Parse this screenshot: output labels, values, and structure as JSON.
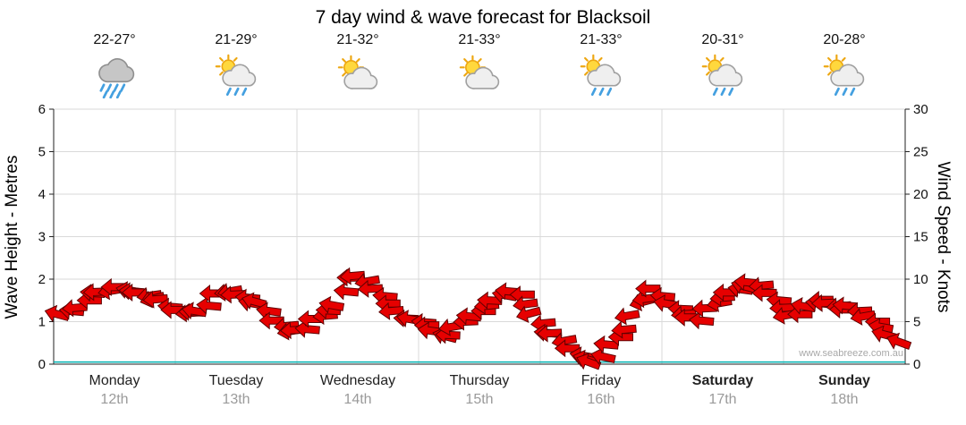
{
  "title": "7 day wind & wave forecast for Blacksoil",
  "watermark": "www.seabreeze.com.au",
  "left_axis": {
    "label": "Wave Height - Metres",
    "ticks": [
      0,
      1,
      2,
      3,
      4,
      5,
      6
    ]
  },
  "right_axis": {
    "label": "Wind Speed - Knots",
    "ticks": [
      0,
      5,
      10,
      15,
      20,
      25,
      30
    ]
  },
  "days": [
    {
      "name": "Monday",
      "date": "12th",
      "temp": "22-27°",
      "icon": "rain",
      "bold": false
    },
    {
      "name": "Tuesday",
      "date": "13th",
      "temp": "21-29°",
      "icon": "sun-shower",
      "bold": false
    },
    {
      "name": "Wednesday",
      "date": "14th",
      "temp": "21-32°",
      "icon": "partly-cloudy",
      "bold": false
    },
    {
      "name": "Thursday",
      "date": "15th",
      "temp": "21-33°",
      "icon": "partly-cloudy",
      "bold": false
    },
    {
      "name": "Friday",
      "date": "16th",
      "temp": "21-33°",
      "icon": "sun-shower",
      "bold": false
    },
    {
      "name": "Saturday",
      "date": "17th",
      "temp": "20-31°",
      "icon": "sun-shower",
      "bold": true
    },
    {
      "name": "Sunday",
      "date": "18th",
      "temp": "20-28°",
      "icon": "sun-shower",
      "bold": true
    }
  ],
  "chart_data": {
    "type": "line",
    "title": "7 day wind & wave forecast for Blacksoil",
    "x_categories": [
      "Monday",
      "Tuesday",
      "Wednesday",
      "Thursday",
      "Friday",
      "Saturday",
      "Sunday"
    ],
    "samples_per_day": 8,
    "ylim_left": [
      0,
      6
    ],
    "ylim_right": [
      0,
      30
    ],
    "legend": "none",
    "series": [
      {
        "name": "Wind Speed",
        "units": "knots",
        "axis": "right",
        "style": "arrows",
        "color": "#e60000",
        "values": [
          5.5,
          6.5,
          8.5,
          9,
          8.5,
          8.5,
          8,
          6.5,
          6,
          6.5,
          8,
          8.5,
          8,
          7,
          5,
          4,
          4.5,
          5.5,
          7,
          10.5,
          9.5,
          8,
          6.5,
          5,
          4.5,
          3.5,
          4,
          5.5,
          7,
          8.5,
          8,
          6,
          4,
          2.5,
          1,
          0.5,
          2,
          4,
          7.5,
          8.5,
          7,
          6,
          5.5,
          7,
          8.5,
          9.5,
          9,
          7.5,
          6,
          6.5,
          7.5,
          7,
          6.5,
          5.5,
          4.5,
          3
        ],
        "directions_deg": [
          195,
          175,
          185,
          170,
          190,
          180,
          165,
          185,
          175,
          190,
          180,
          170,
          185,
          195,
          180,
          170,
          185,
          175,
          190,
          180,
          170,
          185,
          175,
          190,
          180,
          195,
          170,
          185,
          175,
          190,
          180,
          165,
          185,
          170,
          190,
          200,
          185,
          175,
          165,
          180,
          190,
          175,
          185,
          170,
          180,
          195,
          175,
          185,
          170,
          190,
          180,
          175,
          185,
          170,
          190,
          200
        ]
      },
      {
        "name": "Wave Height",
        "units": "metres",
        "axis": "left",
        "style": "line",
        "color": "#00b2b2",
        "values": [
          0.05,
          0.05,
          0.05,
          0.05,
          0.05,
          0.05,
          0.05,
          0.05
        ]
      }
    ]
  }
}
